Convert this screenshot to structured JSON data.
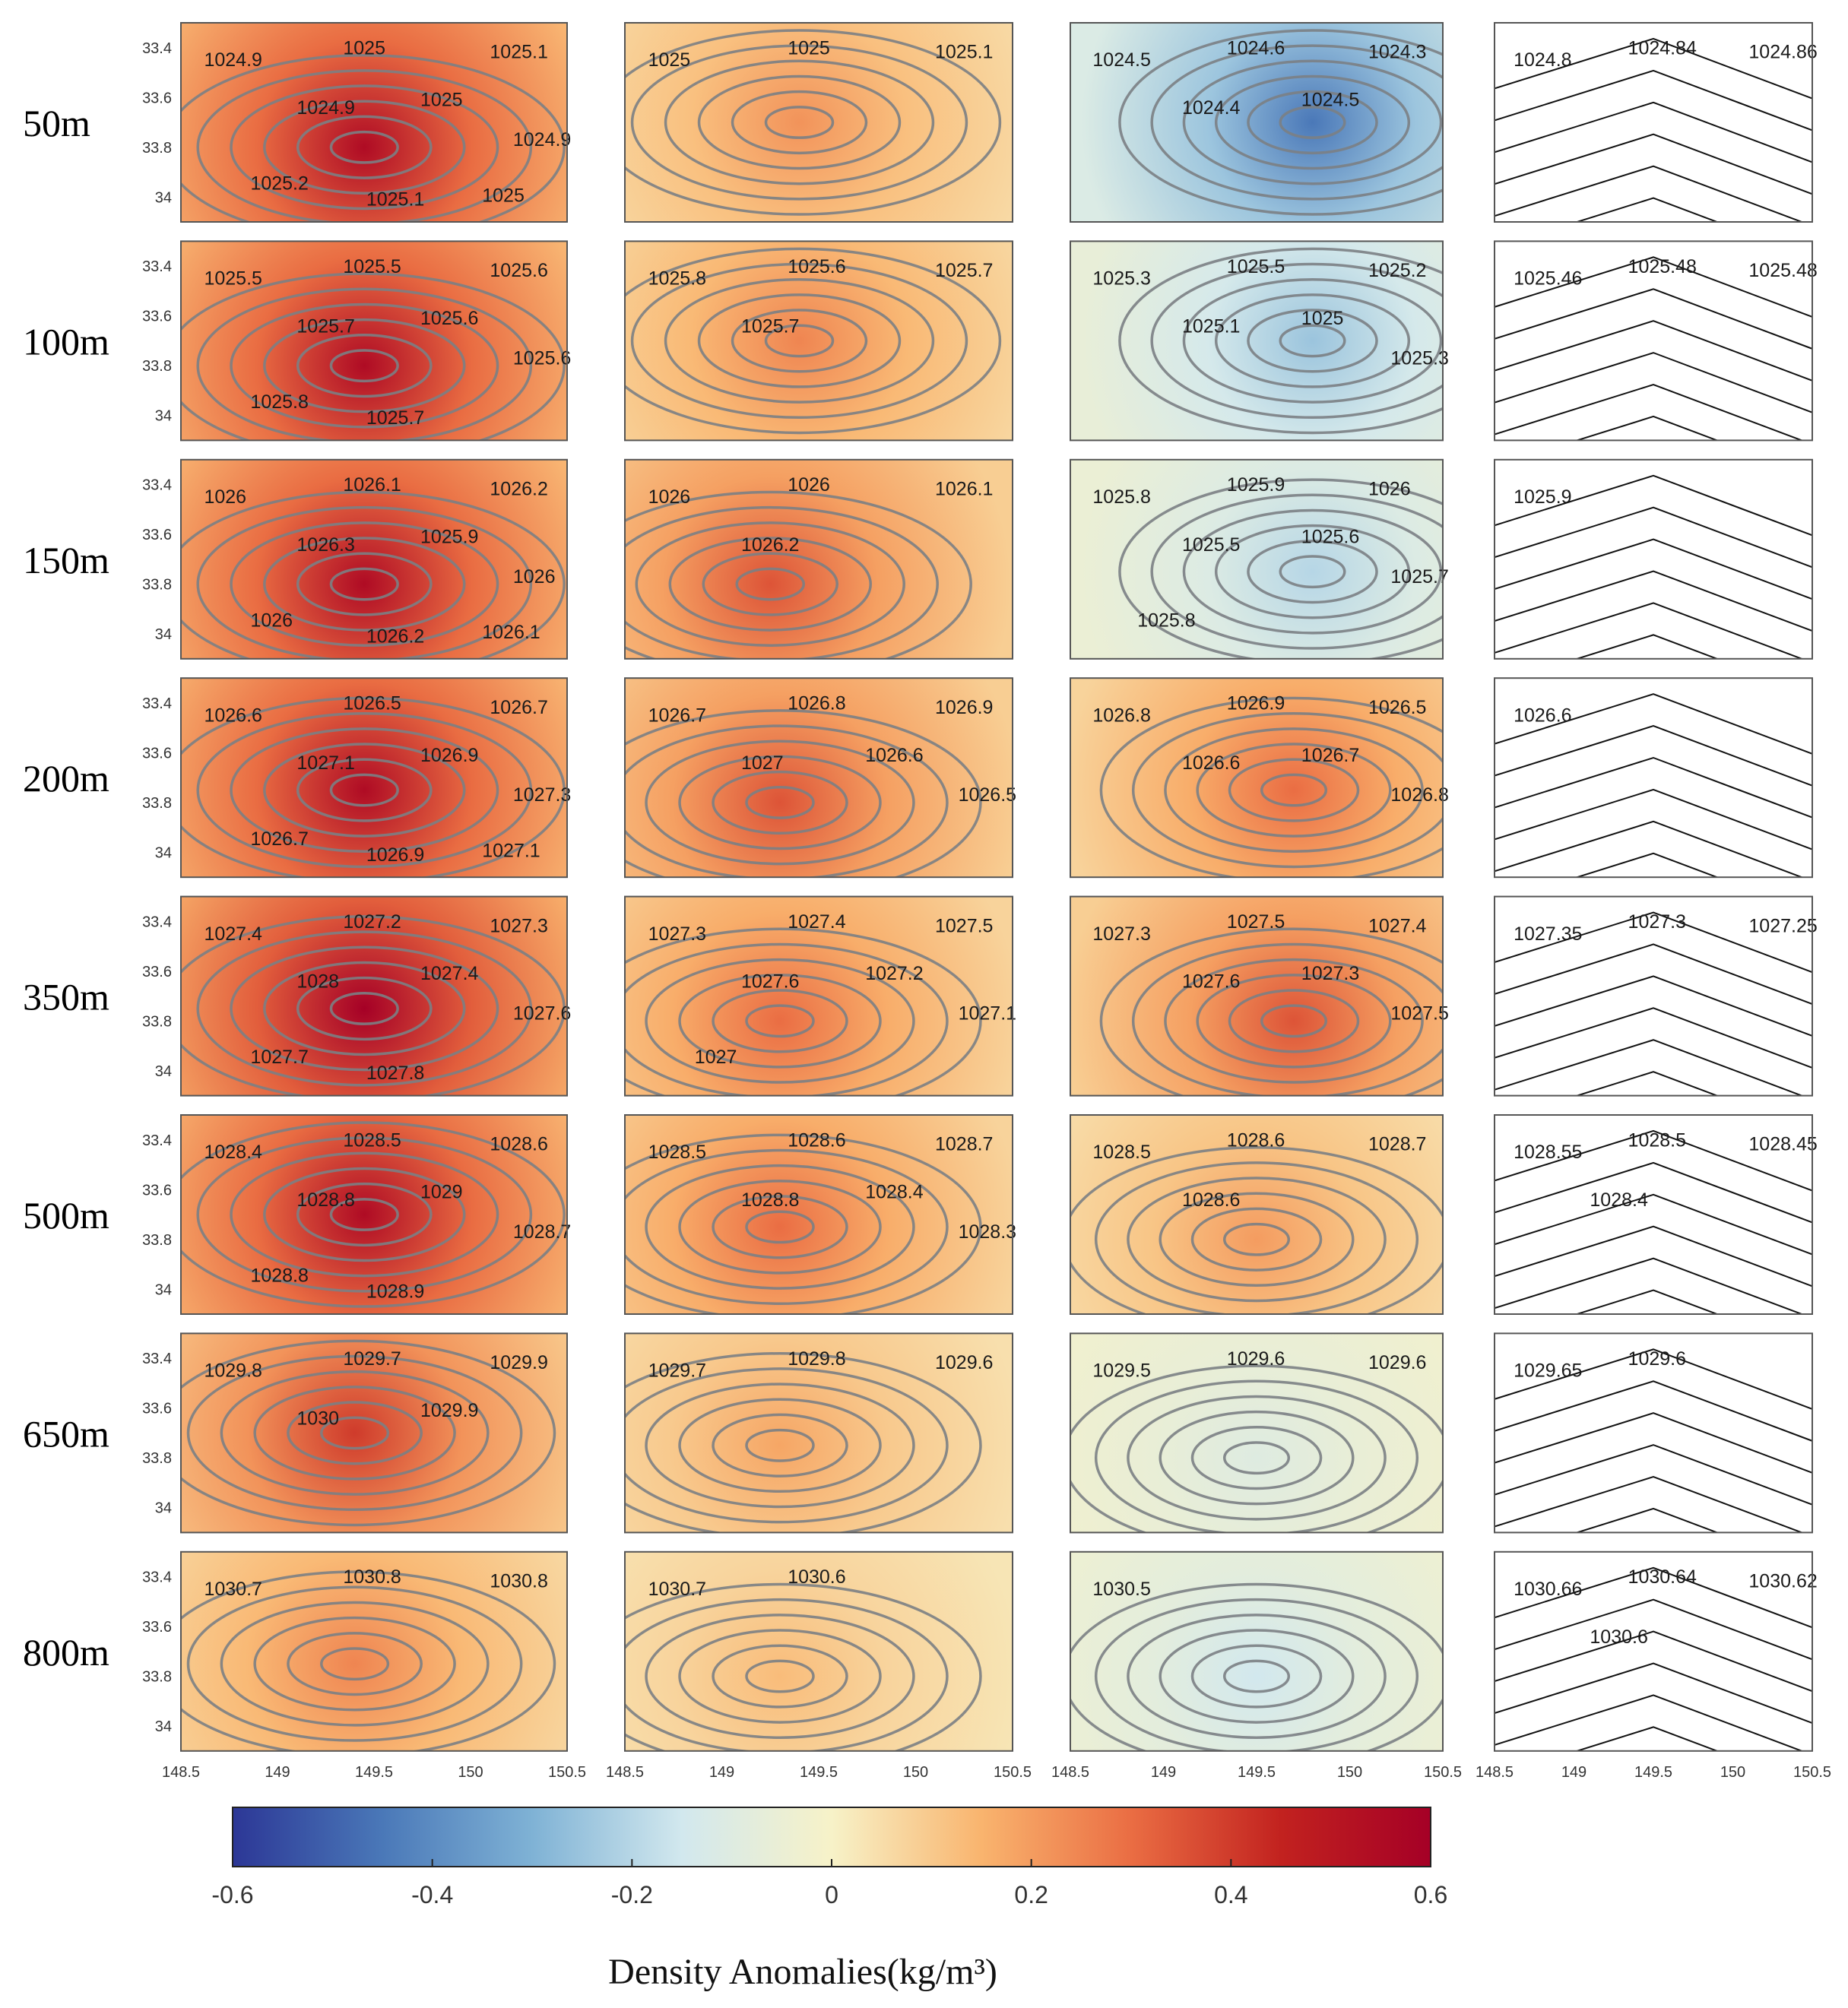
{
  "chart_data": {
    "type": "heatmap",
    "title": "",
    "xlabel": "",
    "ylabel": "",
    "x_ticks": [
      "148.5",
      "149",
      "149.5",
      "150",
      "150.5"
    ],
    "y_ticks": [
      "33.4",
      "33.6",
      "33.8",
      "34"
    ],
    "colorbar": {
      "title": "Density Anomalies(kg/m³)",
      "ticks": [
        "-0.6",
        "-0.4",
        "-0.2",
        "0",
        "0.2",
        "0.4",
        "0.6"
      ],
      "range": [
        -0.6,
        0.6
      ],
      "colors": [
        "#2c3796",
        "#4a78b8",
        "#7fb2d5",
        "#d2e8ee",
        "#f7f2c8",
        "#f9b46e",
        "#ea6d43",
        "#c2221f",
        "#a50026"
      ]
    },
    "rows": [
      {
        "depth": "50m",
        "panels": [
          {
            "anomaly": 0.55,
            "center": [
              149.45,
              33.8
            ],
            "labels": [
              "1024.9",
              "1025",
              "1025.1",
              "1024.9",
              "1025",
              "1024.9",
              "1025.2",
              "1025.1",
              "1025"
            ]
          },
          {
            "anomaly": 0.22,
            "center": [
              149.4,
              33.7
            ],
            "labels": [
              "1025",
              "1025",
              "1025.1"
            ]
          },
          {
            "anomaly": -0.45,
            "center": [
              149.8,
              33.7
            ],
            "labels": [
              "1024.5",
              "1024.6",
              "1024.3",
              "1024.4",
              "1024.5"
            ]
          },
          {
            "labels": [
              "1024.8",
              "1024.84",
              "1024.86"
            ]
          }
        ]
      },
      {
        "depth": "100m",
        "panels": [
          {
            "anomaly": 0.55,
            "center": [
              149.45,
              33.8
            ],
            "labels": [
              "1025.5",
              "1025.5",
              "1025.6",
              "1025.7",
              "1025.6",
              "1025.6",
              "1025.8",
              "1025.7"
            ]
          },
          {
            "anomaly": 0.25,
            "center": [
              149.4,
              33.7
            ],
            "labels": [
              "1025.8",
              "1025.6",
              "1025.7",
              "1025.7"
            ]
          },
          {
            "anomaly": -0.25,
            "center": [
              149.8,
              33.7
            ],
            "labels": [
              "1025.3",
              "1025.5",
              "1025.2",
              "1025.1",
              "1025",
              "1025.3"
            ]
          },
          {
            "labels": [
              "1025.46",
              "1025.48",
              "1025.48"
            ]
          }
        ]
      },
      {
        "depth": "150m",
        "panels": [
          {
            "anomaly": 0.55,
            "center": [
              149.45,
              33.8
            ],
            "labels": [
              "1026",
              "1026.1",
              "1026.2",
              "1026.3",
              "1025.9",
              "1026",
              "1026",
              "1026.2",
              "1026.1"
            ]
          },
          {
            "anomaly": 0.35,
            "center": [
              149.25,
              33.8
            ],
            "labels": [
              "1026",
              "1026",
              "1026.1",
              "1026.2"
            ]
          },
          {
            "anomaly": -0.2,
            "center": [
              149.8,
              33.75
            ],
            "labels": [
              "1025.8",
              "1025.9",
              "1026",
              "1025.5",
              "1025.6",
              "1025.7",
              "1025.8"
            ]
          },
          {
            "labels": [
              "1025.9"
            ]
          }
        ]
      },
      {
        "depth": "200m",
        "panels": [
          {
            "anomaly": 0.55,
            "center": [
              149.45,
              33.75
            ],
            "labels": [
              "1026.6",
              "1026.5",
              "1026.7",
              "1027.1",
              "1026.9",
              "1027.3",
              "1026.7",
              "1026.9",
              "1027.1"
            ]
          },
          {
            "anomaly": 0.35,
            "center": [
              149.3,
              33.8
            ],
            "labels": [
              "1026.7",
              "1026.8",
              "1026.9",
              "1027",
              "1026.6",
              "1026.5"
            ]
          },
          {
            "anomaly": 0.3,
            "center": [
              149.7,
              33.75
            ],
            "labels": [
              "1026.8",
              "1026.9",
              "1026.5",
              "1026.6",
              "1026.7",
              "1026.8"
            ]
          },
          {
            "labels": [
              "1026.6"
            ]
          }
        ]
      },
      {
        "depth": "350m",
        "panels": [
          {
            "anomaly": 0.6,
            "center": [
              149.45,
              33.75
            ],
            "labels": [
              "1027.4",
              "1027.2",
              "1027.3",
              "1028",
              "1027.4",
              "1027.6",
              "1027.7",
              "1027.8"
            ]
          },
          {
            "anomaly": 0.3,
            "center": [
              149.3,
              33.8
            ],
            "labels": [
              "1027.3",
              "1027.4",
              "1027.5",
              "1027.6",
              "1027.2",
              "1027.1",
              "1027"
            ]
          },
          {
            "anomaly": 0.35,
            "center": [
              149.7,
              33.8
            ],
            "labels": [
              "1027.3",
              "1027.5",
              "1027.4",
              "1027.6",
              "1027.3",
              "1027.5"
            ]
          },
          {
            "labels": [
              "1027.35",
              "1027.3",
              "1027.25"
            ]
          }
        ]
      },
      {
        "depth": "500m",
        "panels": [
          {
            "anomaly": 0.55,
            "center": [
              149.45,
              33.7
            ],
            "labels": [
              "1028.4",
              "1028.5",
              "1028.6",
              "1028.8",
              "1029",
              "1028.7",
              "1028.8",
              "1028.9"
            ]
          },
          {
            "anomaly": 0.3,
            "center": [
              149.3,
              33.75
            ],
            "labels": [
              "1028.5",
              "1028.6",
              "1028.7",
              "1028.8",
              "1028.4",
              "1028.3"
            ]
          },
          {
            "anomaly": 0.2,
            "center": [
              149.5,
              33.8
            ],
            "labels": [
              "1028.5",
              "1028.6",
              "1028.7",
              "1028.6"
            ]
          },
          {
            "labels": [
              "1028.55",
              "1028.5",
              "1028.45",
              "1028.4"
            ]
          }
        ]
      },
      {
        "depth": "650m",
        "panels": [
          {
            "anomaly": 0.4,
            "center": [
              149.4,
              33.7
            ],
            "labels": [
              "1029.8",
              "1029.7",
              "1029.9",
              "1030",
              "1029.9"
            ]
          },
          {
            "anomaly": 0.18,
            "center": [
              149.3,
              33.75
            ],
            "labels": [
              "1029.7",
              "1029.8",
              "1029.6"
            ]
          },
          {
            "anomaly": -0.1,
            "center": [
              149.5,
              33.8
            ],
            "labels": [
              "1029.5",
              "1029.6",
              "1029.6"
            ]
          },
          {
            "labels": [
              "1029.65",
              "1029.6"
            ]
          }
        ]
      },
      {
        "depth": "800m",
        "panels": [
          {
            "anomaly": 0.25,
            "center": [
              149.4,
              33.75
            ],
            "labels": [
              "1030.7",
              "1030.8",
              "1030.8"
            ]
          },
          {
            "anomaly": 0.13,
            "center": [
              149.3,
              33.8
            ],
            "labels": [
              "1030.7",
              "1030.6"
            ]
          },
          {
            "anomaly": -0.15,
            "center": [
              149.5,
              33.8
            ],
            "labels": [
              "1030.5"
            ]
          },
          {
            "labels": [
              "1030.66",
              "1030.64",
              "1030.62",
              "1030.6"
            ]
          }
        ]
      }
    ]
  }
}
